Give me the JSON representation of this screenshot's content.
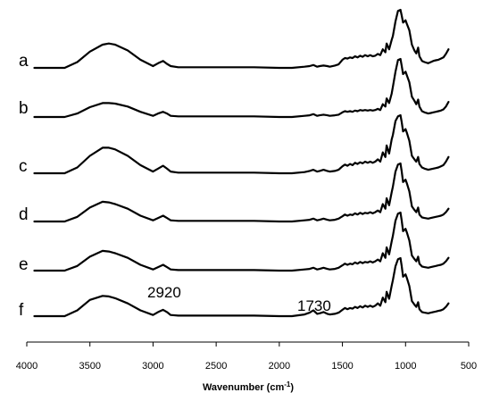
{
  "chart_data": {
    "type": "line",
    "xlabel": "Wavenumber (cm",
    "xlabel_sup": "-1",
    "xlabel_tail": ")",
    "xlim": [
      4000,
      500
    ],
    "x_reversed": true,
    "x_ticks": [
      "4000",
      "3500",
      "3000",
      "2500",
      "2000",
      "1500",
      "1000",
      "500"
    ],
    "grid": false,
    "series": [
      {
        "name": "a",
        "x": [
          3940,
          3700,
          3600,
          3500,
          3400,
          3350,
          3300,
          3200,
          3100,
          3000,
          2960,
          2920,
          2890,
          2860,
          2800,
          2600,
          2400,
          2200,
          2000,
          1900,
          1800,
          1760,
          1730,
          1700,
          1680,
          1650,
          1620,
          1600,
          1560,
          1530,
          1500,
          1480,
          1460,
          1440,
          1420,
          1400,
          1380,
          1360,
          1340,
          1320,
          1300,
          1280,
          1260,
          1240,
          1220,
          1200,
          1180,
          1160,
          1150,
          1130,
          1110,
          1100,
          1080,
          1060,
          1040,
          1030,
          1020,
          1000,
          990,
          970,
          950,
          930,
          915,
          900,
          890,
          870,
          850,
          820,
          800,
          780,
          760,
          740,
          720,
          700,
          680,
          660
        ],
        "y": [
          0.0,
          0.0,
          0.1,
          0.28,
          0.4,
          0.42,
          0.4,
          0.3,
          0.14,
          0.03,
          0.08,
          0.12,
          0.07,
          0.03,
          0.01,
          0.01,
          0.01,
          0.01,
          0.0,
          0.0,
          0.02,
          0.03,
          0.05,
          0.02,
          0.03,
          0.04,
          0.03,
          0.02,
          0.04,
          0.06,
          0.14,
          0.17,
          0.16,
          0.18,
          0.17,
          0.2,
          0.18,
          0.21,
          0.19,
          0.22,
          0.2,
          0.22,
          0.2,
          0.21,
          0.24,
          0.22,
          0.32,
          0.27,
          0.42,
          0.32,
          0.48,
          0.55,
          0.8,
          0.98,
          1.0,
          0.9,
          0.78,
          0.82,
          0.76,
          0.65,
          0.4,
          0.3,
          0.25,
          0.35,
          0.2,
          0.12,
          0.1,
          0.08,
          0.1,
          0.12,
          0.13,
          0.14,
          0.16,
          0.18,
          0.24,
          0.32
        ]
      },
      {
        "name": "b",
        "x": [
          3940,
          3700,
          3600,
          3500,
          3400,
          3350,
          3300,
          3200,
          3100,
          3000,
          2960,
          2920,
          2890,
          2860,
          2800,
          2600,
          2400,
          2200,
          2000,
          1900,
          1800,
          1760,
          1730,
          1700,
          1680,
          1650,
          1620,
          1600,
          1560,
          1530,
          1500,
          1480,
          1460,
          1440,
          1420,
          1400,
          1380,
          1360,
          1340,
          1320,
          1300,
          1280,
          1260,
          1240,
          1220,
          1200,
          1180,
          1160,
          1150,
          1130,
          1110,
          1100,
          1080,
          1060,
          1040,
          1030,
          1020,
          1000,
          990,
          970,
          950,
          930,
          915,
          900,
          890,
          870,
          850,
          820,
          800,
          780,
          760,
          740,
          720,
          700,
          680,
          660
        ],
        "y": [
          0.0,
          0.0,
          0.06,
          0.17,
          0.24,
          0.24,
          0.23,
          0.18,
          0.09,
          0.02,
          0.06,
          0.09,
          0.06,
          0.02,
          0.01,
          0.01,
          0.01,
          0.01,
          0.0,
          0.0,
          0.02,
          0.03,
          0.05,
          0.02,
          0.03,
          0.04,
          0.03,
          0.02,
          0.03,
          0.04,
          0.08,
          0.1,
          0.09,
          0.1,
          0.09,
          0.11,
          0.1,
          0.12,
          0.11,
          0.12,
          0.11,
          0.12,
          0.11,
          0.12,
          0.14,
          0.12,
          0.22,
          0.18,
          0.32,
          0.24,
          0.4,
          0.52,
          0.78,
          0.98,
          1.0,
          0.88,
          0.74,
          0.78,
          0.72,
          0.6,
          0.35,
          0.28,
          0.22,
          0.3,
          0.18,
          0.1,
          0.08,
          0.06,
          0.07,
          0.08,
          0.09,
          0.1,
          0.11,
          0.13,
          0.18,
          0.26
        ]
      },
      {
        "name": "c",
        "x": [
          3940,
          3700,
          3600,
          3500,
          3400,
          3350,
          3300,
          3200,
          3100,
          3000,
          2960,
          2920,
          2890,
          2860,
          2800,
          2600,
          2400,
          2200,
          2000,
          1900,
          1800,
          1760,
          1730,
          1700,
          1680,
          1650,
          1620,
          1600,
          1560,
          1530,
          1500,
          1480,
          1460,
          1440,
          1420,
          1400,
          1380,
          1360,
          1340,
          1320,
          1300,
          1280,
          1260,
          1240,
          1220,
          1200,
          1180,
          1160,
          1150,
          1130,
          1110,
          1100,
          1080,
          1060,
          1040,
          1030,
          1020,
          1000,
          990,
          970,
          950,
          930,
          915,
          900,
          890,
          870,
          850,
          820,
          800,
          780,
          760,
          740,
          720,
          700,
          680,
          660
        ],
        "y": [
          0.0,
          0.0,
          0.1,
          0.3,
          0.44,
          0.44,
          0.41,
          0.3,
          0.14,
          0.03,
          0.08,
          0.13,
          0.08,
          0.03,
          0.01,
          0.01,
          0.01,
          0.01,
          0.0,
          0.0,
          0.02,
          0.04,
          0.06,
          0.03,
          0.04,
          0.06,
          0.04,
          0.03,
          0.04,
          0.06,
          0.12,
          0.15,
          0.13,
          0.16,
          0.14,
          0.18,
          0.16,
          0.19,
          0.17,
          0.2,
          0.18,
          0.2,
          0.18,
          0.2,
          0.24,
          0.2,
          0.36,
          0.28,
          0.48,
          0.34,
          0.58,
          0.66,
          0.9,
          0.98,
          1.0,
          0.88,
          0.72,
          0.76,
          0.7,
          0.56,
          0.3,
          0.24,
          0.2,
          0.28,
          0.16,
          0.1,
          0.08,
          0.06,
          0.07,
          0.08,
          0.09,
          0.1,
          0.12,
          0.14,
          0.2,
          0.28
        ]
      },
      {
        "name": "d",
        "x": [
          3940,
          3700,
          3600,
          3500,
          3400,
          3350,
          3300,
          3200,
          3100,
          3000,
          2960,
          2920,
          2890,
          2860,
          2800,
          2600,
          2400,
          2200,
          2000,
          1900,
          1800,
          1760,
          1730,
          1700,
          1680,
          1650,
          1620,
          1600,
          1560,
          1530,
          1500,
          1480,
          1460,
          1440,
          1420,
          1400,
          1380,
          1360,
          1340,
          1320,
          1300,
          1280,
          1260,
          1240,
          1220,
          1200,
          1180,
          1160,
          1150,
          1130,
          1110,
          1100,
          1080,
          1060,
          1040,
          1030,
          1020,
          1000,
          990,
          970,
          950,
          930,
          915,
          900,
          890,
          870,
          850,
          820,
          800,
          780,
          760,
          740,
          720,
          700,
          680,
          660
        ],
        "y": [
          0.0,
          0.0,
          0.08,
          0.24,
          0.34,
          0.33,
          0.3,
          0.22,
          0.1,
          0.02,
          0.06,
          0.1,
          0.06,
          0.02,
          0.01,
          0.01,
          0.01,
          0.01,
          0.0,
          0.0,
          0.02,
          0.03,
          0.05,
          0.02,
          0.03,
          0.05,
          0.03,
          0.02,
          0.03,
          0.05,
          0.09,
          0.12,
          0.1,
          0.12,
          0.11,
          0.14,
          0.12,
          0.15,
          0.13,
          0.15,
          0.14,
          0.16,
          0.14,
          0.16,
          0.19,
          0.16,
          0.3,
          0.22,
          0.4,
          0.28,
          0.5,
          0.6,
          0.86,
          0.98,
          1.0,
          0.86,
          0.68,
          0.72,
          0.66,
          0.52,
          0.26,
          0.2,
          0.16,
          0.24,
          0.12,
          0.07,
          0.06,
          0.05,
          0.06,
          0.07,
          0.08,
          0.09,
          0.1,
          0.12,
          0.16,
          0.22
        ]
      },
      {
        "name": "e",
        "x": [
          3940,
          3700,
          3600,
          3500,
          3400,
          3350,
          3300,
          3200,
          3100,
          3000,
          2960,
          2920,
          2890,
          2860,
          2800,
          2600,
          2400,
          2200,
          2000,
          1900,
          1800,
          1760,
          1730,
          1700,
          1680,
          1650,
          1620,
          1600,
          1560,
          1530,
          1500,
          1480,
          1460,
          1440,
          1420,
          1400,
          1380,
          1360,
          1340,
          1320,
          1300,
          1280,
          1260,
          1240,
          1220,
          1200,
          1180,
          1160,
          1150,
          1130,
          1110,
          1100,
          1080,
          1060,
          1040,
          1030,
          1020,
          1000,
          990,
          970,
          950,
          930,
          915,
          900,
          890,
          870,
          850,
          820,
          800,
          780,
          760,
          740,
          720,
          700,
          680,
          660
        ],
        "y": [
          0.0,
          0.0,
          0.08,
          0.24,
          0.34,
          0.33,
          0.3,
          0.22,
          0.1,
          0.02,
          0.06,
          0.1,
          0.06,
          0.02,
          0.01,
          0.01,
          0.01,
          0.01,
          0.0,
          0.0,
          0.02,
          0.03,
          0.05,
          0.02,
          0.03,
          0.05,
          0.03,
          0.02,
          0.03,
          0.05,
          0.09,
          0.12,
          0.1,
          0.12,
          0.11,
          0.14,
          0.12,
          0.15,
          0.13,
          0.15,
          0.14,
          0.16,
          0.14,
          0.16,
          0.19,
          0.16,
          0.3,
          0.22,
          0.4,
          0.28,
          0.5,
          0.6,
          0.86,
          0.98,
          1.0,
          0.86,
          0.68,
          0.72,
          0.66,
          0.52,
          0.26,
          0.2,
          0.16,
          0.24,
          0.12,
          0.07,
          0.06,
          0.05,
          0.06,
          0.07,
          0.08,
          0.09,
          0.1,
          0.12,
          0.16,
          0.22
        ]
      },
      {
        "name": "f",
        "x": [
          3940,
          3700,
          3600,
          3500,
          3400,
          3350,
          3300,
          3200,
          3100,
          3000,
          2960,
          2920,
          2890,
          2860,
          2800,
          2600,
          2400,
          2200,
          2000,
          1900,
          1800,
          1760,
          1730,
          1700,
          1680,
          1650,
          1620,
          1600,
          1560,
          1530,
          1500,
          1480,
          1460,
          1440,
          1420,
          1400,
          1380,
          1360,
          1340,
          1320,
          1300,
          1280,
          1260,
          1240,
          1220,
          1200,
          1180,
          1160,
          1150,
          1130,
          1110,
          1100,
          1080,
          1060,
          1040,
          1030,
          1020,
          1000,
          990,
          970,
          950,
          930,
          915,
          900,
          890,
          870,
          850,
          820,
          800,
          780,
          760,
          740,
          720,
          700,
          680,
          660
        ],
        "y": [
          0.0,
          0.0,
          0.1,
          0.28,
          0.35,
          0.34,
          0.31,
          0.22,
          0.1,
          0.02,
          0.07,
          0.11,
          0.07,
          0.02,
          0.01,
          0.01,
          0.01,
          0.01,
          0.0,
          0.0,
          0.03,
          0.06,
          0.1,
          0.04,
          0.05,
          0.07,
          0.04,
          0.03,
          0.04,
          0.06,
          0.11,
          0.14,
          0.12,
          0.14,
          0.13,
          0.16,
          0.14,
          0.17,
          0.15,
          0.18,
          0.16,
          0.18,
          0.16,
          0.18,
          0.22,
          0.18,
          0.32,
          0.24,
          0.42,
          0.3,
          0.52,
          0.62,
          0.86,
          0.98,
          1.0,
          0.86,
          0.68,
          0.72,
          0.66,
          0.52,
          0.26,
          0.2,
          0.16,
          0.24,
          0.12,
          0.07,
          0.06,
          0.05,
          0.06,
          0.07,
          0.08,
          0.09,
          0.1,
          0.12,
          0.16,
          0.22
        ]
      }
    ],
    "annotations": [
      {
        "text": "2920",
        "x": 2920,
        "series": "f"
      },
      {
        "text": "1730",
        "x": 1730,
        "series": "f"
      }
    ]
  }
}
